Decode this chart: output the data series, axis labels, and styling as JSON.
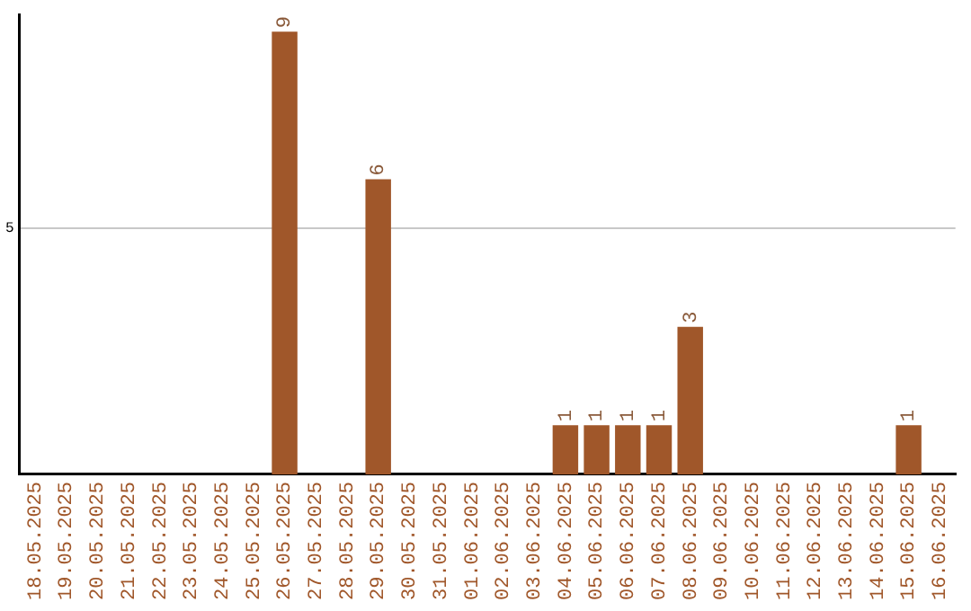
{
  "chart_data": {
    "type": "bar",
    "categories": [
      "18.05.2025",
      "19.05.2025",
      "20.05.2025",
      "21.05.2025",
      "22.05.2025",
      "23.05.2025",
      "24.05.2025",
      "25.05.2025",
      "26.05.2025",
      "27.05.2025",
      "28.05.2025",
      "29.05.2025",
      "30.05.2025",
      "31.05.2025",
      "01.06.2025",
      "02.06.2025",
      "03.06.2025",
      "04.06.2025",
      "05.06.2025",
      "06.06.2025",
      "07.06.2025",
      "08.06.2025",
      "09.06.2025",
      "10.06.2025",
      "11.06.2025",
      "12.06.2025",
      "13.06.2025",
      "14.06.2025",
      "15.06.2025",
      "16.06.2025"
    ],
    "values": [
      0,
      0,
      0,
      0,
      0,
      0,
      0,
      0,
      9,
      0,
      0,
      6,
      0,
      0,
      0,
      0,
      0,
      1,
      1,
      1,
      1,
      3,
      0,
      0,
      0,
      0,
      0,
      0,
      1,
      0
    ],
    "value_labels": [
      null,
      null,
      null,
      null,
      null,
      null,
      null,
      null,
      "9",
      null,
      null,
      "6",
      null,
      null,
      null,
      null,
      null,
      "1",
      "1",
      "1",
      "1",
      "3",
      null,
      null,
      null,
      null,
      null,
      null,
      "1",
      null
    ],
    "color": "#a0572a",
    "ylim": [
      0,
      9.35
    ],
    "yticks": [
      5
    ],
    "grid": "y",
    "legend": false
  }
}
